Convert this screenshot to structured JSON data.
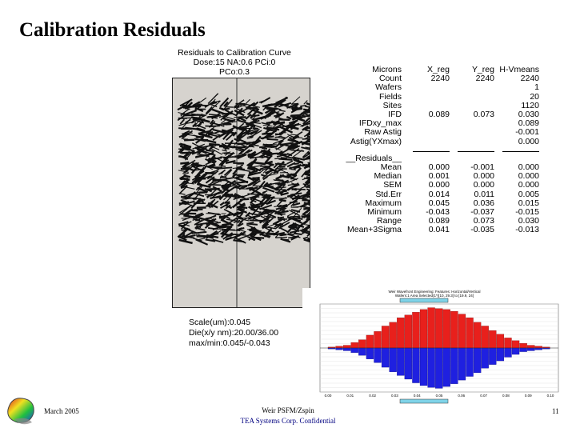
{
  "slide": {
    "title": "Calibration Residuals",
    "footer_date": "March 2005",
    "footer_author": "Weir PSFM/Zspin",
    "footer_confidential": "TEA Systems Corp. Confidential",
    "page_number": "11"
  },
  "vector_plot": {
    "title": "Residuals to Calibration Curve",
    "subtitle": "Dose:15 NA:0.6 PCi:0 PCo:0.3",
    "scale": "Scale(um):0.045",
    "die": "Die(x/y nm):20.00/36.00",
    "maxmin": "max/min:0.045/-0.043",
    "background_color": "#d6d3ce"
  },
  "stats": {
    "header": [
      "Microns",
      "X_reg",
      "Y_reg",
      "H-Vmeans"
    ],
    "rows": [
      [
        "Count",
        "2240",
        "2240",
        "2240"
      ],
      [
        "Wafers",
        "",
        "",
        "1"
      ],
      [
        "Fields",
        "",
        "",
        "20"
      ],
      [
        "Sites",
        "",
        "",
        "1120"
      ],
      [
        "IFD",
        "0.089",
        "0.073",
        "0.030"
      ],
      [
        "IFDxy_max",
        "",
        "",
        "0.089"
      ],
      [
        "Raw Astig",
        "",
        "",
        "-0.001"
      ],
      [
        "Astig(YXmax)",
        "",
        "",
        "0.000"
      ]
    ],
    "residuals_label": "__Residuals__",
    "residual_rows": [
      [
        "Mean",
        "0.000",
        "-0.001",
        "0.000"
      ],
      [
        "Median",
        "0.001",
        "0.000",
        "0.000"
      ],
      [
        "SEM",
        "0.000",
        "0.000",
        "0.000"
      ],
      [
        "Std.Err",
        "0.014",
        "0.011",
        "0.005"
      ],
      [
        "Maximum",
        "0.045",
        "0.036",
        "0.015"
      ],
      [
        "Minimum",
        "-0.043",
        "-0.037",
        "-0.015"
      ],
      [
        "Range",
        "0.089",
        "0.073",
        "0.030"
      ],
      [
        "Mean+3Sigma",
        "0.041",
        "-0.035",
        "-0.013"
      ]
    ]
  },
  "chart_data": {
    "type": "bar",
    "title": "Weir Wavefront Engineering: Features: Horizontal/Vertical",
    "subtitle": "Wafers:1 Area Selected(1*)[10, 29.3] to [19.9, 24]",
    "x_ticks": [
      "0.00",
      "0.01",
      "0.02",
      "0.03",
      "0.04",
      "0.05",
      "0.06",
      "0.07",
      "0.08",
      "0.09",
      "0.10"
    ],
    "series": [
      {
        "color": "#e8201c",
        "values": [
          1,
          2,
          3,
          6,
          9,
          14,
          18,
          24,
          28,
          33,
          36,
          39,
          42,
          44,
          43,
          42,
          40,
          37,
          33,
          28,
          24,
          19,
          15,
          11,
          8,
          5,
          3,
          2,
          1
        ]
      },
      {
        "color": "#1f20e0",
        "values": [
          1,
          2,
          3,
          5,
          8,
          12,
          16,
          21,
          26,
          30,
          34,
          38,
          41,
          43,
          44,
          42,
          39,
          35,
          31,
          27,
          22,
          18,
          14,
          10,
          7,
          4,
          3,
          2,
          1
        ]
      }
    ]
  }
}
